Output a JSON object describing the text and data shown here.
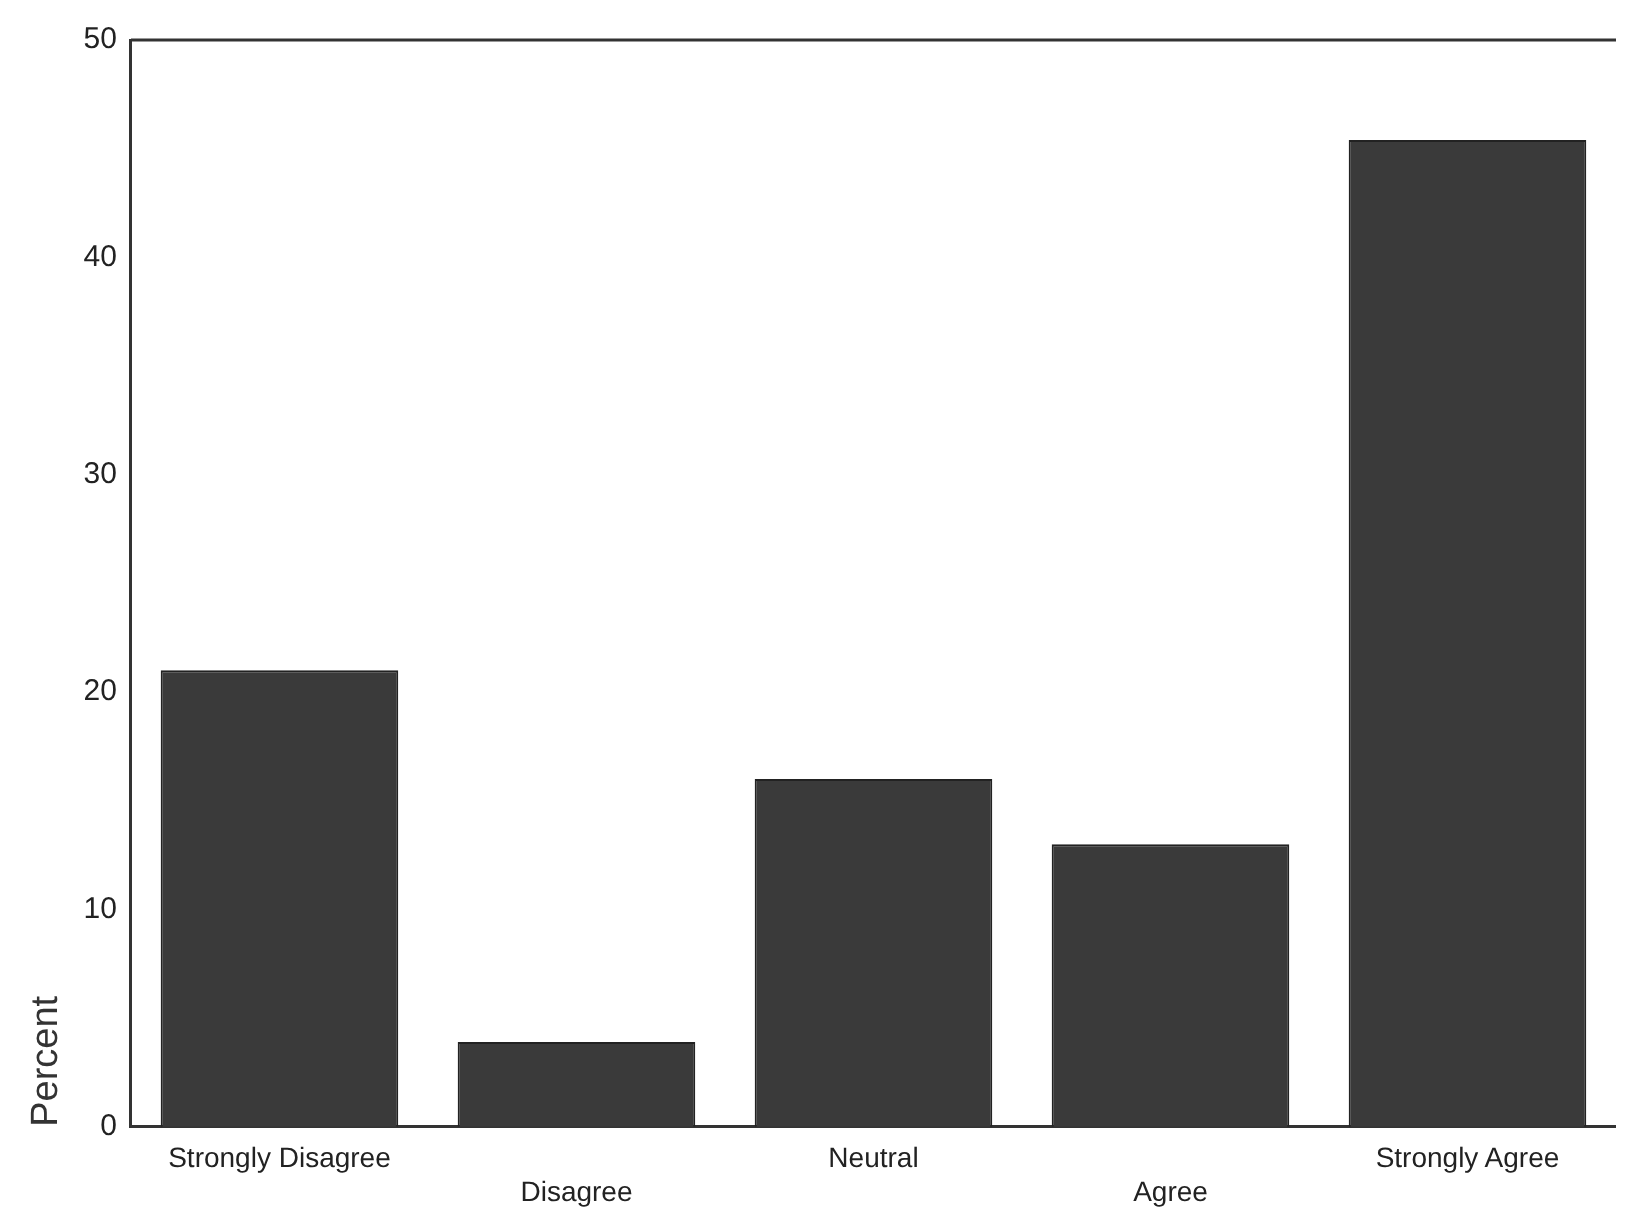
{
  "chart_data": {
    "type": "bar",
    "ylabel": "Percent",
    "categories": [
      "Strongly Disagree",
      "Disagree",
      "Neutral",
      "Agree",
      "Strongly Agree"
    ],
    "values": [
      21,
      3.9,
      16,
      13,
      45.4
    ],
    "color": "#3a3a3a",
    "ylim": [
      0,
      50
    ],
    "yticks": [
      0,
      10,
      20,
      30,
      40,
      50
    ],
    "grid": false,
    "legend": false
  }
}
